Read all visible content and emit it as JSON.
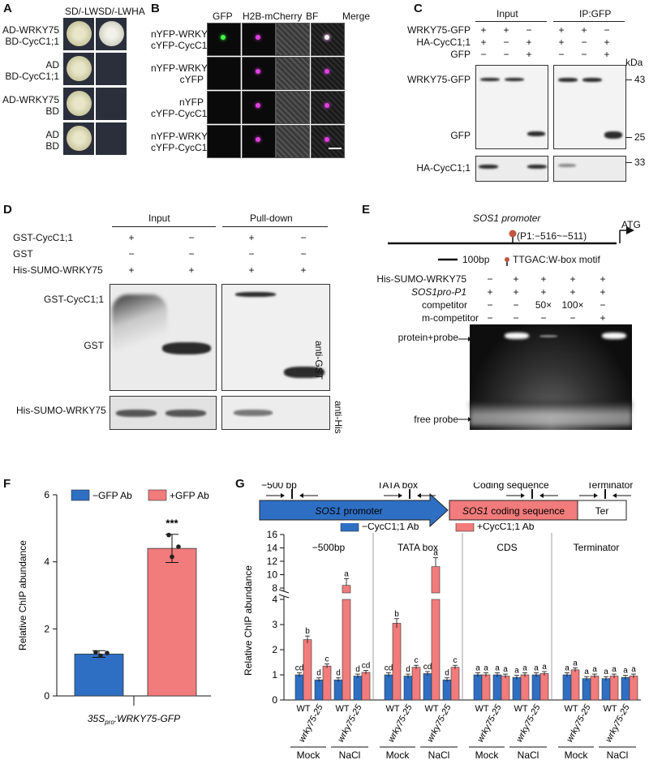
{
  "panelA": {
    "label": "A",
    "cols": [
      "SD/-LW",
      "SD/-LWHA"
    ],
    "rows": [
      {
        "line1": "AD-WRKY75",
        "line2": "BD-CycC1;1"
      },
      {
        "line1": "AD",
        "line2": "BD-CycC1;1"
      },
      {
        "line1": "AD-WRKY75",
        "line2": "BD"
      },
      {
        "line1": "AD",
        "line2": "BD"
      }
    ]
  },
  "panelB": {
    "label": "B",
    "cols": [
      "GFP",
      "H2B-mCherry",
      "BF",
      "Merge"
    ],
    "rows": [
      {
        "line1": "nYFP-WRKY75",
        "line2": "cYFP-CycC1;1"
      },
      {
        "line1": "nYFP-WRKY75",
        "line2": "cYFP"
      },
      {
        "line1": "nYFP",
        "line2": "cYFP-CycC1;1"
      },
      {
        "line1": "nYFP-WRKY1",
        "line2": "cYFP-CycC1;1"
      }
    ]
  },
  "panelC": {
    "label": "C",
    "groups": [
      "Input",
      "IP:GFP"
    ],
    "kda": "kDa",
    "rowLabels": [
      "WRKY75-GFP",
      "HA-CycC1;1",
      "GFP"
    ],
    "rowSigns": [
      [
        "+",
        "+",
        "−",
        "+",
        "+",
        "−"
      ],
      [
        "+",
        "−",
        "+",
        "+",
        "−",
        "+"
      ],
      [
        "−",
        "−",
        "+",
        "−",
        "−",
        "+"
      ]
    ],
    "bandLabels": [
      "WRKY75-GFP",
      "GFP",
      "HA-CycC1;1"
    ],
    "markers": [
      "43",
      "25",
      "33"
    ]
  },
  "panelD": {
    "label": "D",
    "groups": [
      "Input",
      "Pull-down"
    ],
    "rowLabels": [
      "GST-CycC1;1",
      "GST",
      "His-SUMO-WRKY75"
    ],
    "rowSigns": [
      [
        "+",
        "−",
        "+",
        "−"
      ],
      [
        "−",
        "−",
        "−",
        "−"
      ],
      [
        "+",
        "+",
        "+",
        "+"
      ]
    ],
    "bandLabels": [
      "GST-CycC1;1",
      "GST",
      "His-SUMO-WRKY75"
    ],
    "antibodies": [
      "anti-GST",
      "anti-His"
    ]
  },
  "panelE": {
    "label": "E",
    "promoter": "SOS1 promoter",
    "site": "(P1:−516~−511)",
    "atg": "ATG",
    "scale": "100bp",
    "motif": "TTGAC:W-box motif",
    "rowLabels": [
      "His-SUMO-WRKY75",
      "SOS1pro-P1",
      "competitor",
      "m-competitor"
    ],
    "rowSigns": [
      [
        "−",
        "+",
        "+",
        "+",
        "+"
      ],
      [
        "+",
        "+",
        "+",
        "+",
        "+"
      ],
      [
        "−",
        "−",
        "50×",
        "100×",
        "−"
      ],
      [
        "−",
        "−",
        "−",
        "−",
        "+"
      ]
    ],
    "bands": [
      "protein+probe",
      "free probe"
    ]
  },
  "panelF": {
    "label": "F",
    "ylabel": "Relative ChIP abundance",
    "yticks": [
      "0",
      "2",
      "4",
      "6"
    ],
    "legend": [
      "−GFP Ab",
      "+GFP Ab"
    ],
    "colors": {
      "neg": "#2e6fc4",
      "pos": "#f27b7b"
    },
    "chart_data": {
      "type": "bar",
      "categories": [
        "−GFP Ab",
        "+GFP Ab"
      ],
      "values": [
        1.25,
        4.4
      ],
      "errors": [
        0.1,
        0.42
      ],
      "ylim": [
        0,
        6
      ],
      "significance": "***",
      "xlabel": "35Spro:WRKY75-GFP"
    },
    "xlabel_main": "35S",
    "xlabel_sub": "pro",
    "xlabel_rest": ":WRKY75-GFP"
  },
  "panelG": {
    "label": "G",
    "gene": {
      "regions": [
        "−500 bp",
        "TATA box",
        "Coding sequence",
        "Terminator"
      ],
      "promoter": "SOS1 promoter",
      "promoterItalic": "SOS1",
      "promoterRest": " promoter",
      "coding": "SOS1 coding sequence",
      "codingItalic": "SOS1",
      "codingRest": " coding sequence",
      "ter": "Ter"
    },
    "ylabel": "Relative ChIP abundance",
    "legend": [
      "−CycC1;1 Ab",
      "+CycC1;1 Ab"
    ],
    "groups": [
      "−500bp",
      "TATA box",
      "CDS",
      "Terminator"
    ],
    "genotypes": [
      "WT",
      "wrky75-25"
    ],
    "treatments": [
      "Mock",
      "NaCl"
    ],
    "yticksLow": [
      "0",
      "1",
      "2",
      "3",
      "4"
    ],
    "yticksHigh": [
      "8",
      "10",
      "12",
      "14",
      "16"
    ],
    "chart_data": {
      "type": "bar",
      "groups": [
        "−500bp",
        "TATA box",
        "CDS",
        "Terminator"
      ],
      "series": [
        {
          "name": "−CycC1;1 Ab",
          "values": [
            [
              1.0,
              0.8,
              0.8,
              0.95
            ],
            [
              1.0,
              0.95,
              1.05,
              0.8
            ],
            [
              1.0,
              1.0,
              0.9,
              1.0
            ],
            [
              1.0,
              0.85,
              0.85,
              0.9
            ]
          ]
        },
        {
          "name": "+CycC1;1 Ab",
          "values": [
            [
              2.4,
              1.35,
              8.4,
              1.1
            ],
            [
              3.05,
              1.3,
              11.2,
              1.3
            ],
            [
              1.0,
              0.95,
              1.0,
              1.05
            ],
            [
              1.2,
              0.95,
              0.95,
              0.95
            ]
          ]
        }
      ],
      "letters": [
        [
          [
            "cd",
            "b"
          ],
          [
            "d",
            "c"
          ],
          [
            "d",
            "a"
          ],
          [
            "d",
            "cd"
          ]
        ],
        [
          [
            "cd",
            "b"
          ],
          [
            "d",
            "c"
          ],
          [
            "cd",
            "a"
          ],
          [
            "d",
            "c"
          ]
        ],
        [
          [
            "a",
            "a"
          ],
          [
            "a",
            "a"
          ],
          [
            "a",
            "a"
          ],
          [
            "a",
            "a"
          ]
        ],
        [
          [
            "a",
            "a"
          ],
          [
            "a",
            "a"
          ],
          [
            "a",
            "a"
          ],
          [
            "a",
            "a"
          ]
        ]
      ],
      "ylim": [
        0,
        16
      ]
    }
  }
}
